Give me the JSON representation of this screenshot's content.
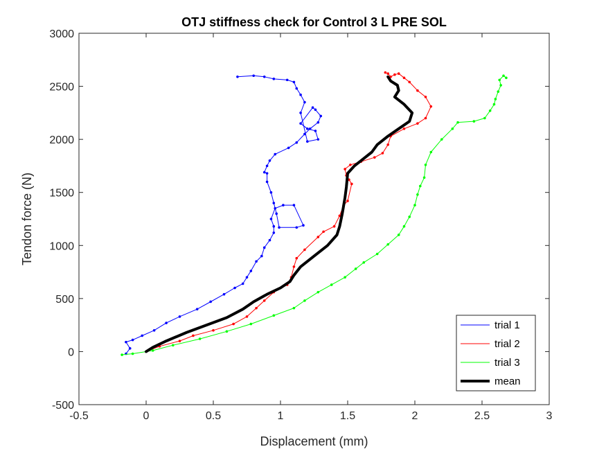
{
  "chart_data": {
    "type": "line",
    "title": "OTJ stiffness check for Control 3 L PRE SOL",
    "xlabel": "Displacement (mm)",
    "ylabel": "Tendon force (N)",
    "xlim": [
      -0.5,
      3
    ],
    "ylim": [
      -500,
      3000
    ],
    "xticks": [
      -0.5,
      0,
      0.5,
      1,
      1.5,
      2,
      2.5,
      3
    ],
    "xtick_labels": [
      "-0.5",
      "0",
      "0.5",
      "1",
      "1.5",
      "2",
      "2.5",
      "3"
    ],
    "yticks": [
      -500,
      0,
      500,
      1000,
      1500,
      2000,
      2500,
      3000
    ],
    "ytick_labels": [
      "-500",
      "0",
      "500",
      "1000",
      "1500",
      "2000",
      "2500",
      "3000"
    ],
    "grid": false,
    "legend_position": "bottom-right",
    "series": [
      {
        "name": "trial 1",
        "color": "#0000ff",
        "markers": true,
        "x": [
          -0.15,
          -0.12,
          -0.15,
          -0.1,
          -0.03,
          0.06,
          0.15,
          0.25,
          0.38,
          0.48,
          0.58,
          0.66,
          0.72,
          0.75,
          0.78,
          0.82,
          0.86,
          0.88,
          0.92,
          0.95,
          0.95,
          0.93,
          0.96,
          1.02,
          1.1,
          1.17,
          1.12,
          0.99,
          0.97,
          0.95,
          0.93,
          0.9,
          0.9,
          0.88,
          0.9,
          0.92,
          0.96,
          1.06,
          1.12,
          1.18,
          1.22,
          1.28,
          1.3,
          1.26,
          1.24,
          1.15,
          1.2,
          1.26,
          1.28,
          1.2,
          1.15,
          1.18,
          1.15,
          1.12,
          1.1,
          1.05,
          0.95,
          0.88,
          0.8,
          0.68
        ],
        "y": [
          -20,
          30,
          90,
          110,
          150,
          200,
          270,
          330,
          400,
          470,
          540,
          600,
          640,
          700,
          760,
          850,
          900,
          980,
          1050,
          1120,
          1180,
          1250,
          1350,
          1380,
          1380,
          1190,
          1170,
          1170,
          1300,
          1400,
          1500,
          1600,
          1680,
          1690,
          1750,
          1800,
          1860,
          1920,
          1970,
          2050,
          2100,
          2160,
          2220,
          2280,
          2300,
          2150,
          2100,
          2080,
          2000,
          1980,
          2250,
          2350,
          2420,
          2480,
          2540,
          2560,
          2570,
          2590,
          2600,
          2590
        ]
      },
      {
        "name": "trial 2",
        "color": "#ff0000",
        "markers": true,
        "x": [
          0.0,
          0.1,
          0.25,
          0.35,
          0.5,
          0.65,
          0.75,
          0.82,
          0.88,
          0.95,
          1.05,
          1.08,
          1.1,
          1.12,
          1.18,
          1.28,
          1.32,
          1.4,
          1.44,
          1.47,
          1.5,
          1.53,
          1.51,
          1.49,
          1.48,
          1.52,
          1.6,
          1.7,
          1.76,
          1.8,
          1.82,
          1.92,
          2.02,
          2.08,
          2.12,
          2.08,
          2.02,
          1.96,
          1.92,
          1.88,
          1.85,
          1.82,
          1.8,
          1.78
        ],
        "y": [
          0,
          50,
          100,
          150,
          200,
          260,
          330,
          410,
          480,
          560,
          630,
          700,
          800,
          880,
          960,
          1080,
          1130,
          1180,
          1280,
          1380,
          1420,
          1580,
          1620,
          1660,
          1720,
          1760,
          1790,
          1830,
          1870,
          1950,
          2030,
          2100,
          2150,
          2200,
          2310,
          2400,
          2460,
          2540,
          2580,
          2620,
          2610,
          2590,
          2620,
          2630
        ]
      },
      {
        "name": "trial 3",
        "color": "#00ff00",
        "markers": true,
        "x": [
          -0.18,
          -0.1,
          0.05,
          0.2,
          0.4,
          0.6,
          0.78,
          0.95,
          1.1,
          1.18,
          1.28,
          1.38,
          1.48,
          1.56,
          1.62,
          1.72,
          1.8,
          1.88,
          1.92,
          1.96,
          2.0,
          2.02,
          2.04,
          2.07,
          2.08,
          2.12,
          2.2,
          2.28,
          2.32,
          2.44,
          2.52,
          2.56,
          2.59,
          2.6,
          2.62,
          2.64,
          2.63,
          2.66,
          2.68
        ],
        "y": [
          -30,
          -20,
          10,
          60,
          120,
          190,
          260,
          340,
          410,
          480,
          560,
          630,
          700,
          780,
          840,
          920,
          1010,
          1100,
          1180,
          1270,
          1380,
          1480,
          1560,
          1640,
          1760,
          1880,
          2000,
          2100,
          2160,
          2170,
          2200,
          2270,
          2330,
          2380,
          2450,
          2510,
          2560,
          2600,
          2580
        ]
      },
      {
        "name": "mean",
        "color": "#000000",
        "markers": false,
        "x": [
          0.0,
          0.05,
          0.15,
          0.3,
          0.45,
          0.6,
          0.72,
          0.8,
          0.9,
          1.0,
          1.07,
          1.1,
          1.15,
          1.25,
          1.35,
          1.42,
          1.44,
          1.46,
          1.48,
          1.49,
          1.5,
          1.55,
          1.6,
          1.68,
          1.72,
          1.8,
          1.88,
          1.96,
          1.98,
          1.92,
          1.85,
          1.88,
          1.87,
          1.82,
          1.8
        ],
        "y": [
          0,
          40,
          100,
          180,
          250,
          320,
          400,
          470,
          540,
          600,
          660,
          720,
          800,
          900,
          1000,
          1100,
          1180,
          1300,
          1450,
          1550,
          1680,
          1750,
          1800,
          1880,
          1950,
          2030,
          2100,
          2170,
          2250,
          2330,
          2400,
          2460,
          2510,
          2550,
          2590
        ]
      }
    ]
  }
}
